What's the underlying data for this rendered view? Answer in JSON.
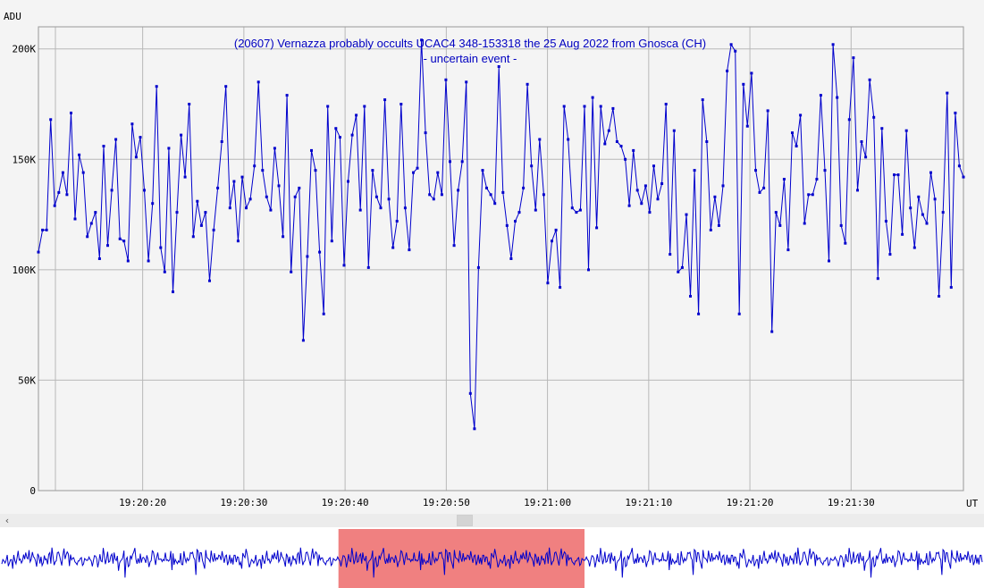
{
  "chart_data": {
    "type": "line",
    "title": "(20607) Vernazza probably occults UCAC4 348-153318 the 25 Aug 2022 from Gnosca (CH)",
    "subtitle": "- uncertain event -",
    "ylabel": "ADU",
    "xlabel": "UT",
    "ylim": [
      0,
      210000
    ],
    "y_ticks": [
      0,
      50000,
      100000,
      150000,
      200000
    ],
    "y_tick_labels": [
      "0",
      "50K",
      "100K",
      "150K",
      "200K"
    ],
    "x_start_seconds": 9.7,
    "x_end_seconds": 101.1,
    "x_tick_seconds": [
      20,
      30,
      40,
      50,
      60,
      70,
      80,
      90
    ],
    "x_tick_labels": [
      "19:20:20",
      "19:20:30",
      "19:20:40",
      "19:20:50",
      "19:21:00",
      "19:21:10",
      "19:21:20",
      "19:21:30"
    ],
    "grid": true,
    "line_color": "#0000cc",
    "series": [
      {
        "values": [
          108000,
          118000,
          118000,
          168000,
          129000,
          135000,
          144000,
          134000,
          171000,
          123000,
          152000,
          144000,
          115000,
          121000,
          126000,
          105000,
          156000,
          111000,
          136000,
          159000,
          114000,
          113000,
          104000,
          166000,
          151000,
          160000,
          136000,
          104000,
          130000,
          183000,
          110000,
          99000,
          155000,
          90000,
          126000,
          161000,
          142000,
          175000,
          115000,
          131000,
          120000,
          126000,
          95000,
          118000,
          137000,
          158000,
          183000,
          128000,
          140000,
          113000,
          142000,
          128000,
          132000,
          147000,
          185000,
          145000,
          133000,
          127000,
          155000,
          138000,
          115000,
          179000,
          99000,
          133000,
          137000,
          68000,
          106000,
          154000,
          145000,
          108000,
          80000,
          174000,
          113000,
          164000,
          160000,
          102000,
          140000,
          161000,
          170000,
          127000,
          174000,
          101000,
          145000,
          133000,
          128000,
          177000,
          132000,
          110000,
          122000,
          175000,
          128000,
          109000,
          144000,
          146000,
          204000,
          162000,
          134000,
          132000,
          144000,
          134000,
          186000,
          149000,
          111000,
          136000,
          149000,
          185000,
          44000,
          28000,
          101000,
          145000,
          137000,
          134000,
          130000,
          192000,
          135000,
          120000,
          105000,
          122000,
          126000,
          137000,
          184000,
          147000,
          127000,
          159000,
          134000,
          94000,
          113000,
          118000,
          92000,
          174000,
          159000,
          128000,
          126000,
          127000,
          174000,
          100000,
          178000,
          119000,
          174000,
          157000,
          163000,
          173000,
          158000,
          156000,
          150000,
          129000,
          154000,
          136000,
          130000,
          138000,
          126000,
          147000,
          132000,
          139000,
          175000,
          107000,
          163000,
          99000,
          101000,
          125000,
          88000,
          145000,
          80000,
          177000,
          158000,
          118000,
          133000,
          120000,
          138000,
          190000,
          202000,
          199000,
          80000,
          184000,
          165000,
          189000,
          145000,
          135000,
          137000,
          172000,
          72000,
          126000,
          120000,
          141000,
          109000,
          162000,
          156000,
          170000,
          121000,
          134000,
          134000,
          141000,
          179000,
          145000,
          104000,
          202000,
          178000,
          120000,
          112000,
          168000,
          196000,
          136000,
          158000,
          151000,
          186000,
          169000,
          96000,
          164000,
          122000,
          107000,
          143000,
          143000,
          116000,
          163000,
          128000,
          110000,
          133000,
          125000,
          121000,
          144000,
          132000,
          88000,
          126000,
          180000,
          92000,
          171000,
          147000,
          142000
        ]
      }
    ]
  },
  "overview": {
    "selection_color": "#f08080",
    "selection_start_fraction": 0.344,
    "selection_end_fraction": 0.594
  },
  "scrollbar": {
    "left_arrow": "‹"
  }
}
